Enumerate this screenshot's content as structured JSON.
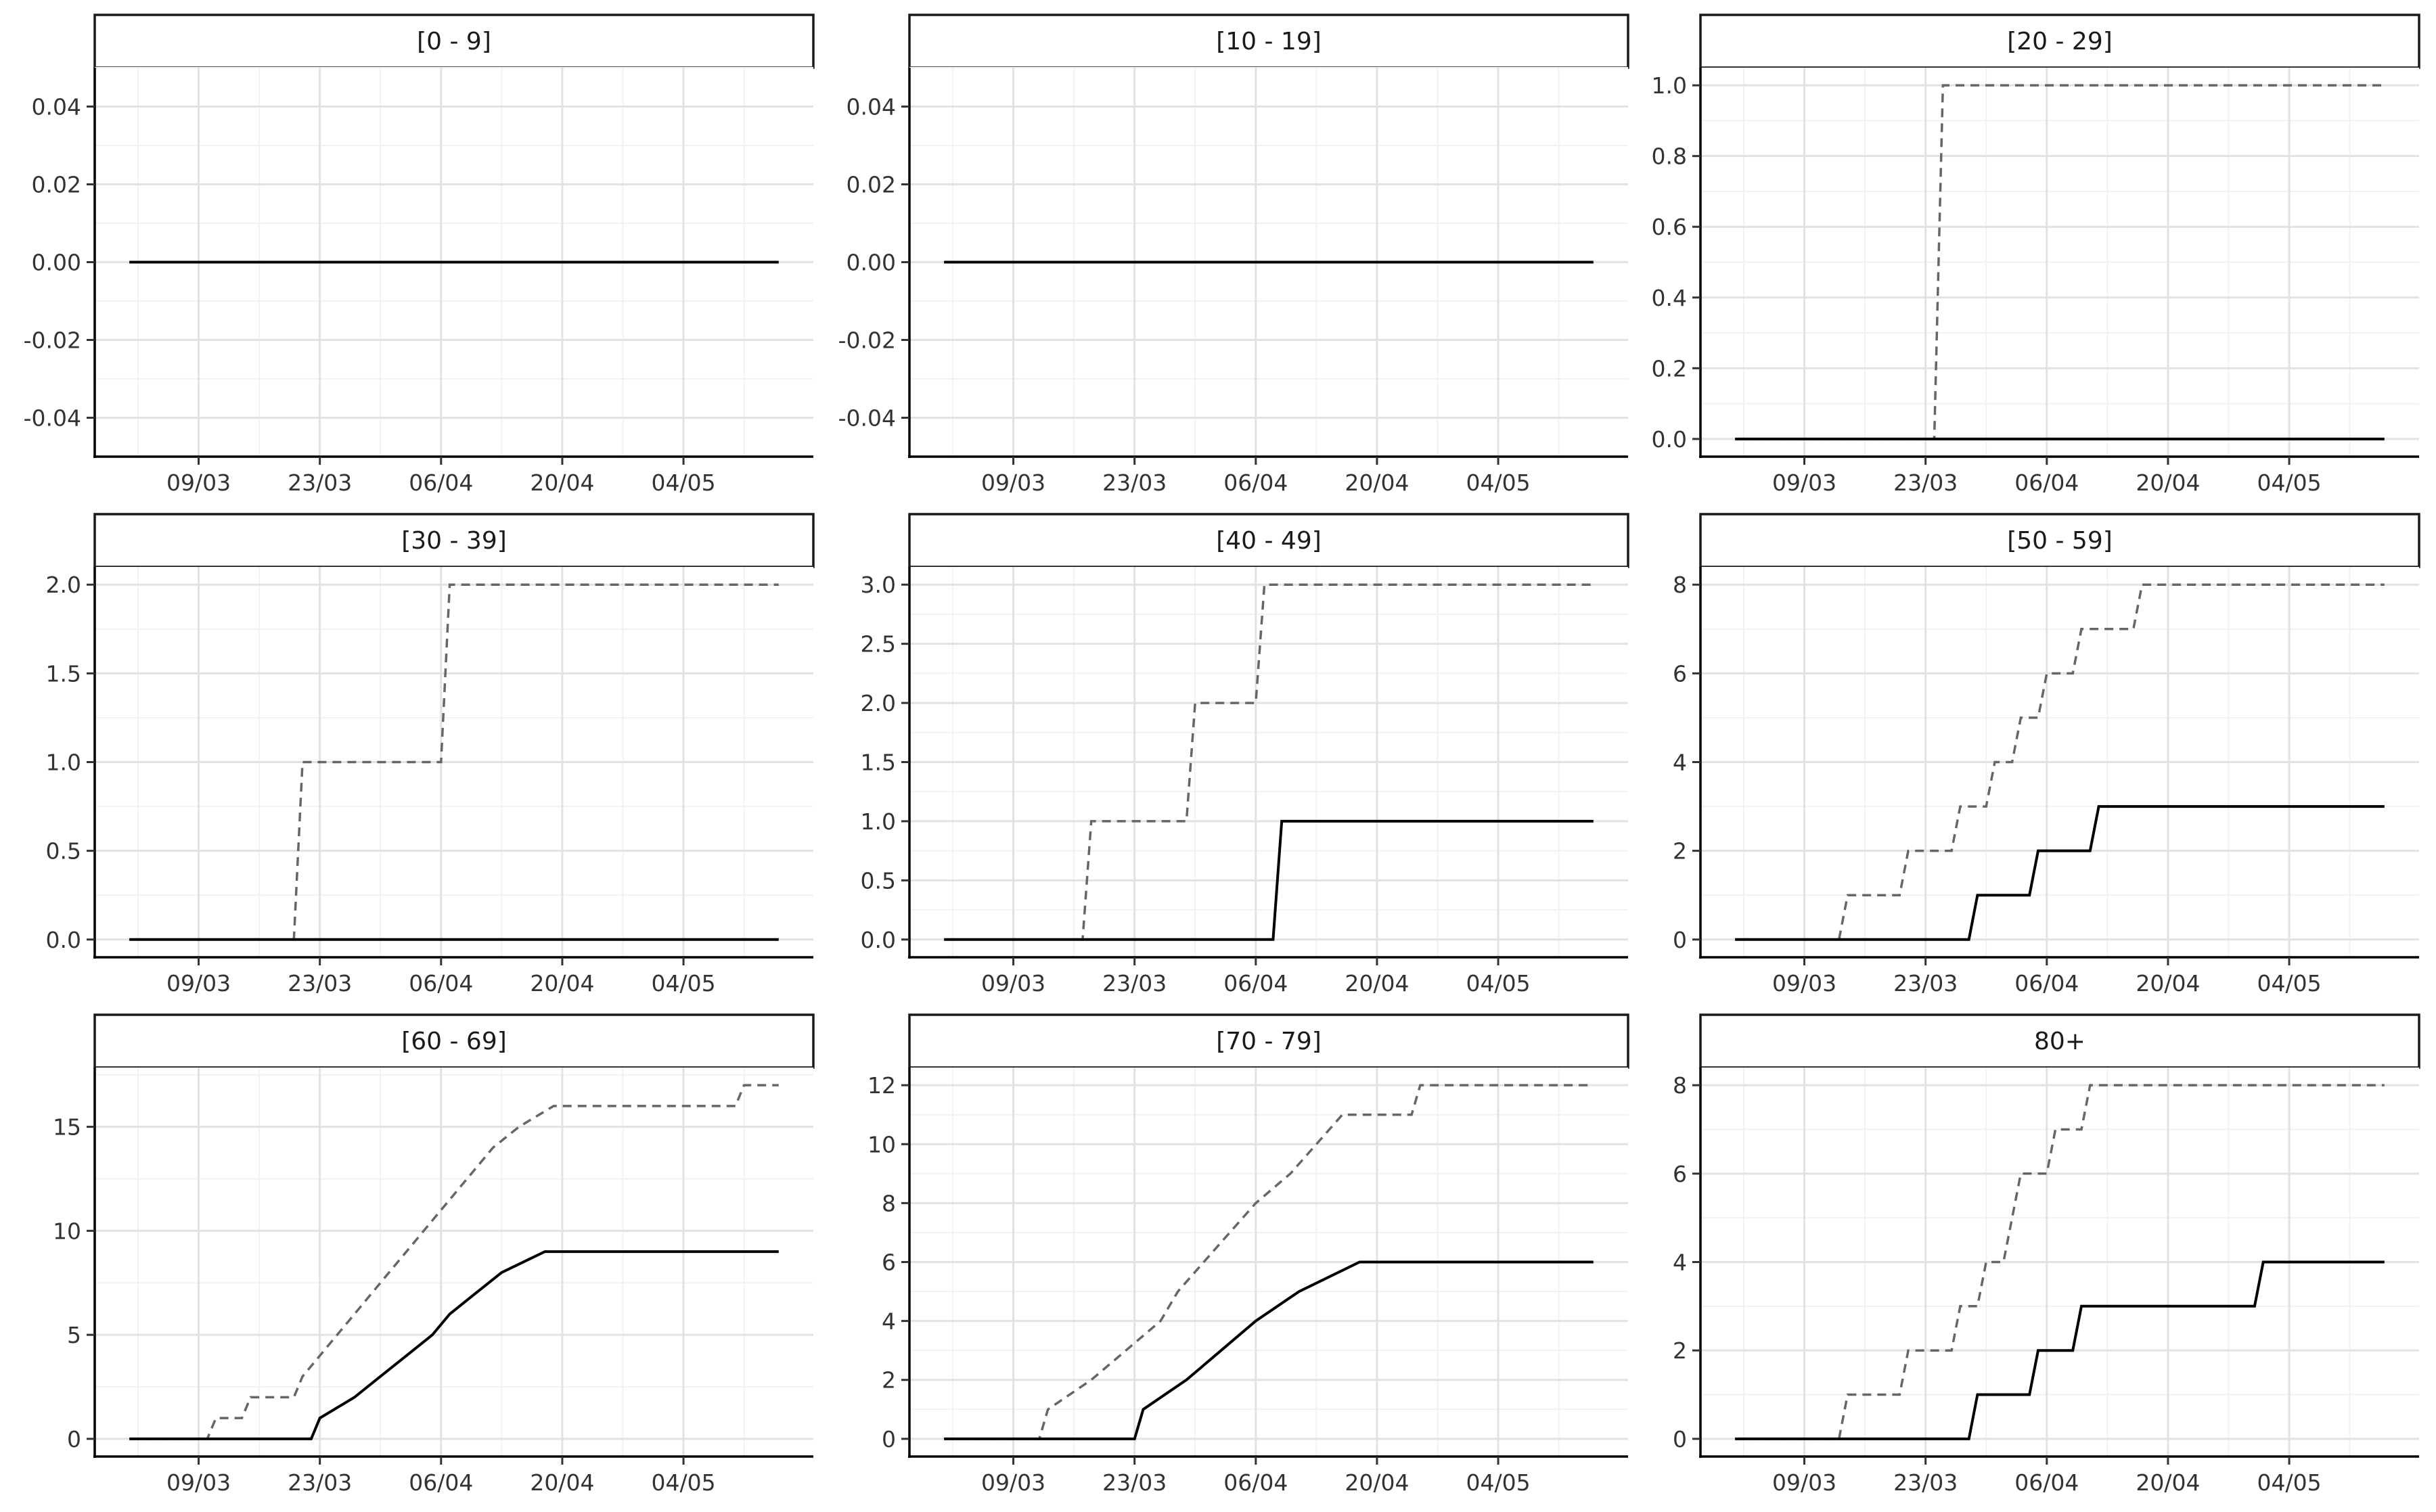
{
  "chart_data": [
    {
      "type": "line",
      "title": "[0 - 9]",
      "x_ticks": [
        "09/03",
        "23/03",
        "06/04",
        "20/04",
        "04/05"
      ],
      "y_ticks": [
        "-0.04",
        "-0.02",
        "0.00",
        "0.02",
        "0.04"
      ],
      "ylim": [
        -0.05,
        0.05
      ],
      "series": [
        {
          "style": "dashed",
          "color": "#666666",
          "points": [
            [
              "2020-03-01",
              0
            ],
            [
              "2020-05-15",
              0
            ]
          ]
        },
        {
          "style": "solid",
          "color": "#000000",
          "points": [
            [
              "2020-03-01",
              0
            ],
            [
              "2020-05-15",
              0
            ]
          ]
        }
      ]
    },
    {
      "type": "line",
      "title": "[10 - 19]",
      "x_ticks": [
        "09/03",
        "23/03",
        "06/04",
        "20/04",
        "04/05"
      ],
      "y_ticks": [
        "-0.04",
        "-0.02",
        "0.00",
        "0.02",
        "0.04"
      ],
      "ylim": [
        -0.05,
        0.05
      ],
      "series": [
        {
          "style": "dashed",
          "color": "#666666",
          "points": [
            [
              "2020-03-01",
              0
            ],
            [
              "2020-05-15",
              0
            ]
          ]
        },
        {
          "style": "solid",
          "color": "#000000",
          "points": [
            [
              "2020-03-01",
              0
            ],
            [
              "2020-05-15",
              0
            ]
          ]
        }
      ]
    },
    {
      "type": "line",
      "title": "[20 - 29]",
      "x_ticks": [
        "09/03",
        "23/03",
        "06/04",
        "20/04",
        "04/05"
      ],
      "y_ticks": [
        "0.0",
        "0.2",
        "0.4",
        "0.6",
        "0.8",
        "1.0"
      ],
      "ylim": [
        -0.05,
        1.05
      ],
      "series": [
        {
          "style": "dashed",
          "color": "#666666",
          "points": [
            [
              "2020-03-01",
              0
            ],
            [
              "2020-03-24",
              0
            ],
            [
              "2020-03-25",
              1
            ],
            [
              "2020-05-15",
              1
            ]
          ]
        },
        {
          "style": "solid",
          "color": "#000000",
          "points": [
            [
              "2020-03-01",
              0
            ],
            [
              "2020-05-15",
              0
            ]
          ]
        }
      ]
    },
    {
      "type": "line",
      "title": "[30 - 39]",
      "x_ticks": [
        "09/03",
        "23/03",
        "06/04",
        "20/04",
        "04/05"
      ],
      "y_ticks": [
        "0.0",
        "0.5",
        "1.0",
        "1.5",
        "2.0"
      ],
      "ylim": [
        -0.1,
        2.1
      ],
      "series": [
        {
          "style": "dashed",
          "color": "#666666",
          "points": [
            [
              "2020-03-01",
              0
            ],
            [
              "2020-03-20",
              0
            ],
            [
              "2020-03-21",
              1
            ],
            [
              "2020-04-06",
              1
            ],
            [
              "2020-04-07",
              2
            ],
            [
              "2020-05-15",
              2
            ]
          ]
        },
        {
          "style": "solid",
          "color": "#000000",
          "points": [
            [
              "2020-03-01",
              0
            ],
            [
              "2020-05-15",
              0
            ]
          ]
        }
      ]
    },
    {
      "type": "line",
      "title": "[40 - 49]",
      "x_ticks": [
        "09/03",
        "23/03",
        "06/04",
        "20/04",
        "04/05"
      ],
      "y_ticks": [
        "0.0",
        "0.5",
        "1.0",
        "1.5",
        "2.0",
        "2.5",
        "3.0"
      ],
      "ylim": [
        -0.15,
        3.15
      ],
      "series": [
        {
          "style": "dashed",
          "color": "#666666",
          "points": [
            [
              "2020-03-01",
              0
            ],
            [
              "2020-03-17",
              0
            ],
            [
              "2020-03-18",
              1
            ],
            [
              "2020-03-29",
              1
            ],
            [
              "2020-03-30",
              2
            ],
            [
              "2020-04-06",
              2
            ],
            [
              "2020-04-07",
              3
            ],
            [
              "2020-05-15",
              3
            ]
          ]
        },
        {
          "style": "solid",
          "color": "#000000",
          "points": [
            [
              "2020-03-01",
              0
            ],
            [
              "2020-04-08",
              0
            ],
            [
              "2020-04-09",
              1
            ],
            [
              "2020-05-15",
              1
            ]
          ]
        }
      ]
    },
    {
      "type": "line",
      "title": "[50 - 59]",
      "x_ticks": [
        "09/03",
        "23/03",
        "06/04",
        "20/04",
        "04/05"
      ],
      "y_ticks": [
        "0",
        "2",
        "4",
        "6",
        "8"
      ],
      "ylim": [
        -0.4,
        8.4
      ],
      "series": [
        {
          "style": "dashed",
          "color": "#666666",
          "points": [
            [
              "2020-03-01",
              0
            ],
            [
              "2020-03-13",
              0
            ],
            [
              "2020-03-14",
              1
            ],
            [
              "2020-03-20",
              1
            ],
            [
              "2020-03-21",
              2
            ],
            [
              "2020-03-26",
              2
            ],
            [
              "2020-03-27",
              3
            ],
            [
              "2020-03-30",
              3
            ],
            [
              "2020-03-31",
              4
            ],
            [
              "2020-04-02",
              4
            ],
            [
              "2020-04-03",
              5
            ],
            [
              "2020-04-05",
              5
            ],
            [
              "2020-04-06",
              6
            ],
            [
              "2020-04-09",
              6
            ],
            [
              "2020-04-10",
              7
            ],
            [
              "2020-04-16",
              7
            ],
            [
              "2020-04-17",
              8
            ],
            [
              "2020-05-15",
              8
            ]
          ]
        },
        {
          "style": "solid",
          "color": "#000000",
          "points": [
            [
              "2020-03-01",
              0
            ],
            [
              "2020-03-28",
              0
            ],
            [
              "2020-03-29",
              1
            ],
            [
              "2020-04-04",
              1
            ],
            [
              "2020-04-05",
              2
            ],
            [
              "2020-04-11",
              2
            ],
            [
              "2020-04-12",
              3
            ],
            [
              "2020-05-15",
              3
            ]
          ]
        }
      ]
    },
    {
      "type": "line",
      "title": "[60 - 69]",
      "x_ticks": [
        "09/03",
        "23/03",
        "06/04",
        "20/04",
        "04/05"
      ],
      "y_ticks": [
        "0",
        "5",
        "10",
        "15"
      ],
      "ylim": [
        -0.85,
        17.85
      ],
      "series": [
        {
          "style": "dashed",
          "color": "#666666",
          "points": [
            [
              "2020-03-01",
              0
            ],
            [
              "2020-03-10",
              0
            ],
            [
              "2020-03-11",
              1
            ],
            [
              "2020-03-14",
              1
            ],
            [
              "2020-03-15",
              2
            ],
            [
              "2020-03-20",
              2
            ],
            [
              "2020-03-21",
              3
            ],
            [
              "2020-03-23",
              4
            ],
            [
              "2020-03-25",
              5
            ],
            [
              "2020-03-27",
              6
            ],
            [
              "2020-03-29",
              7
            ],
            [
              "2020-03-31",
              8
            ],
            [
              "2020-04-02",
              9
            ],
            [
              "2020-04-04",
              10
            ],
            [
              "2020-04-06",
              11
            ],
            [
              "2020-04-08",
              12
            ],
            [
              "2020-04-10",
              13
            ],
            [
              "2020-04-12",
              14
            ],
            [
              "2020-04-15",
              15
            ],
            [
              "2020-04-19",
              16
            ],
            [
              "2020-05-10",
              16
            ],
            [
              "2020-05-11",
              17
            ],
            [
              "2020-05-15",
              17
            ]
          ]
        },
        {
          "style": "solid",
          "color": "#000000",
          "points": [
            [
              "2020-03-01",
              0
            ],
            [
              "2020-03-22",
              0
            ],
            [
              "2020-03-23",
              1
            ],
            [
              "2020-03-27",
              2
            ],
            [
              "2020-03-30",
              3
            ],
            [
              "2020-04-02",
              4
            ],
            [
              "2020-04-05",
              5
            ],
            [
              "2020-04-07",
              6
            ],
            [
              "2020-04-10",
              7
            ],
            [
              "2020-04-13",
              8
            ],
            [
              "2020-04-18",
              9
            ],
            [
              "2020-05-15",
              9
            ]
          ]
        }
      ]
    },
    {
      "type": "line",
      "title": "[70 - 79]",
      "x_ticks": [
        "09/03",
        "23/03",
        "06/04",
        "20/04",
        "04/05"
      ],
      "y_ticks": [
        "0",
        "2",
        "4",
        "6",
        "8",
        "10",
        "12"
      ],
      "ylim": [
        -0.6,
        12.6
      ],
      "series": [
        {
          "style": "dashed",
          "color": "#666666",
          "points": [
            [
              "2020-03-01",
              0
            ],
            [
              "2020-03-12",
              0
            ],
            [
              "2020-03-13",
              1
            ],
            [
              "2020-03-18",
              2
            ],
            [
              "2020-03-22",
              3
            ],
            [
              "2020-03-26",
              4
            ],
            [
              "2020-03-28",
              5
            ],
            [
              "2020-03-31",
              6
            ],
            [
              "2020-04-03",
              7
            ],
            [
              "2020-04-06",
              8
            ],
            [
              "2020-04-10",
              9
            ],
            [
              "2020-04-13",
              10
            ],
            [
              "2020-04-16",
              11
            ],
            [
              "2020-04-24",
              11
            ],
            [
              "2020-04-25",
              12
            ],
            [
              "2020-05-15",
              12
            ]
          ]
        },
        {
          "style": "solid",
          "color": "#000000",
          "points": [
            [
              "2020-03-01",
              0
            ],
            [
              "2020-03-23",
              0
            ],
            [
              "2020-03-24",
              1
            ],
            [
              "2020-03-29",
              2
            ],
            [
              "2020-04-02",
              3
            ],
            [
              "2020-04-06",
              4
            ],
            [
              "2020-04-11",
              5
            ],
            [
              "2020-04-18",
              6
            ],
            [
              "2020-05-15",
              6
            ]
          ]
        }
      ]
    },
    {
      "type": "line",
      "title": "80+",
      "x_ticks": [
        "09/03",
        "23/03",
        "06/04",
        "20/04",
        "04/05"
      ],
      "y_ticks": [
        "0",
        "2",
        "4",
        "6",
        "8"
      ],
      "ylim": [
        -0.4,
        8.4
      ],
      "series": [
        {
          "style": "dashed",
          "color": "#666666",
          "points": [
            [
              "2020-03-01",
              0
            ],
            [
              "2020-03-13",
              0
            ],
            [
              "2020-03-14",
              1
            ],
            [
              "2020-03-20",
              1
            ],
            [
              "2020-03-21",
              2
            ],
            [
              "2020-03-26",
              2
            ],
            [
              "2020-03-27",
              3
            ],
            [
              "2020-03-29",
              3
            ],
            [
              "2020-03-30",
              4
            ],
            [
              "2020-04-01",
              4
            ],
            [
              "2020-04-02",
              5
            ],
            [
              "2020-04-03",
              6
            ],
            [
              "2020-04-06",
              6
            ],
            [
              "2020-04-07",
              7
            ],
            [
              "2020-04-10",
              7
            ],
            [
              "2020-04-11",
              8
            ],
            [
              "2020-05-15",
              8
            ]
          ]
        },
        {
          "style": "solid",
          "color": "#000000",
          "points": [
            [
              "2020-03-01",
              0
            ],
            [
              "2020-03-28",
              0
            ],
            [
              "2020-03-29",
              1
            ],
            [
              "2020-04-04",
              1
            ],
            [
              "2020-04-05",
              2
            ],
            [
              "2020-04-09",
              2
            ],
            [
              "2020-04-10",
              3
            ],
            [
              "2020-04-30",
              3
            ],
            [
              "2020-05-01",
              4
            ],
            [
              "2020-05-15",
              4
            ]
          ]
        }
      ]
    }
  ]
}
